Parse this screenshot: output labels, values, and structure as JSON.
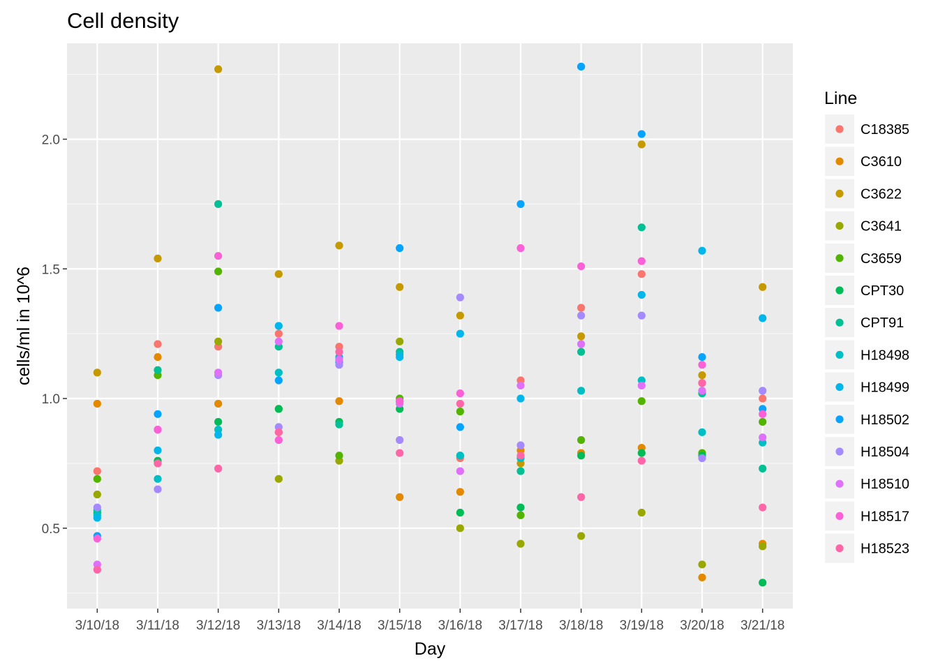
{
  "chart_data": {
    "type": "scatter",
    "title": "Cell density",
    "xlabel": "Day",
    "ylabel": "cells/ml in 10^6",
    "categories": [
      "3/10/18",
      "3/11/18",
      "3/12/18",
      "3/13/18",
      "3/14/18",
      "3/15/18",
      "3/16/18",
      "3/17/18",
      "3/18/18",
      "3/19/18",
      "3/20/18",
      "3/21/18"
    ],
    "ylim": [
      0.19,
      2.37
    ],
    "yticks": [
      0.5,
      1.0,
      1.5,
      2.0
    ],
    "ytick_labels": [
      "0.5",
      "1.0",
      "1.5",
      "2.0"
    ],
    "grid": true,
    "legend": {
      "title": "Line",
      "position": "right"
    },
    "series": [
      {
        "name": "C18385",
        "color": "#F8766D",
        "values": [
          0.72,
          1.21,
          1.2,
          1.25,
          1.2,
          0.99,
          0.77,
          1.07,
          1.35,
          1.48,
          1.06,
          1.0
        ]
      },
      {
        "name": "C3610",
        "color": "#E38900",
        "values": [
          0.98,
          1.16,
          0.98,
          0.87,
          0.99,
          0.62,
          0.64,
          0.8,
          0.79,
          0.81,
          0.31,
          0.44
        ]
      },
      {
        "name": "C3622",
        "color": "#C49A00",
        "values": [
          1.1,
          1.54,
          2.27,
          1.48,
          1.59,
          1.43,
          1.32,
          0.75,
          1.24,
          1.98,
          1.09,
          1.43
        ]
      },
      {
        "name": "C3641",
        "color": "#99A800",
        "values": [
          0.63,
          0.75,
          1.22,
          0.69,
          0.76,
          1.22,
          0.5,
          0.44,
          0.47,
          0.56,
          0.36,
          0.43
        ]
      },
      {
        "name": "C3659",
        "color": "#53B400",
        "values": [
          0.69,
          1.09,
          1.49,
          0.96,
          0.78,
          1.0,
          0.95,
          0.55,
          0.84,
          0.99,
          0.79,
          0.91
        ]
      },
      {
        "name": "CPT30",
        "color": "#00BC56",
        "values": [
          0.56,
          0.76,
          0.91,
          0.96,
          0.91,
          0.96,
          0.56,
          0.58,
          0.78,
          0.79,
          0.78,
          0.29
        ]
      },
      {
        "name": "CPT91",
        "color": "#00C094",
        "values": [
          0.57,
          1.11,
          1.75,
          1.2,
          0.9,
          1.18,
          0.78,
          0.72,
          1.18,
          1.66,
          1.02,
          0.73
        ]
      },
      {
        "name": "H18498",
        "color": "#00BFC4",
        "values": [
          0.55,
          0.69,
          0.88,
          1.1,
          1.15,
          1.17,
          0.78,
          0.77,
          1.03,
          1.07,
          0.87,
          0.83
        ]
      },
      {
        "name": "H18499",
        "color": "#00B6EB",
        "values": [
          0.54,
          0.8,
          0.86,
          1.28,
          1.16,
          1.16,
          1.25,
          1.0,
          2.28,
          1.4,
          1.57,
          1.31
        ]
      },
      {
        "name": "H18502",
        "color": "#06A4FF",
        "values": [
          0.47,
          0.94,
          1.35,
          1.07,
          1.14,
          1.58,
          0.89,
          1.75,
          2.28,
          2.02,
          1.16,
          0.96
        ]
      },
      {
        "name": "H18504",
        "color": "#A58AFF",
        "values": [
          0.58,
          0.65,
          1.09,
          0.89,
          1.13,
          0.84,
          1.39,
          0.82,
          1.32,
          1.32,
          0.77,
          1.03
        ]
      },
      {
        "name": "H18510",
        "color": "#DF70F8",
        "values": [
          0.36,
          0.88,
          1.1,
          1.22,
          1.15,
          0.98,
          0.72,
          1.05,
          1.21,
          1.05,
          1.03,
          0.85
        ]
      },
      {
        "name": "H18517",
        "color": "#FB61D7",
        "values": [
          0.46,
          0.88,
          1.55,
          0.84,
          1.28,
          0.99,
          1.02,
          1.58,
          1.51,
          1.53,
          1.13,
          0.94
        ]
      },
      {
        "name": "H18523",
        "color": "#FF66A8",
        "values": [
          0.34,
          0.75,
          0.73,
          0.87,
          1.18,
          0.79,
          0.98,
          0.78,
          0.62,
          0.76,
          1.06,
          0.58
        ]
      }
    ]
  }
}
